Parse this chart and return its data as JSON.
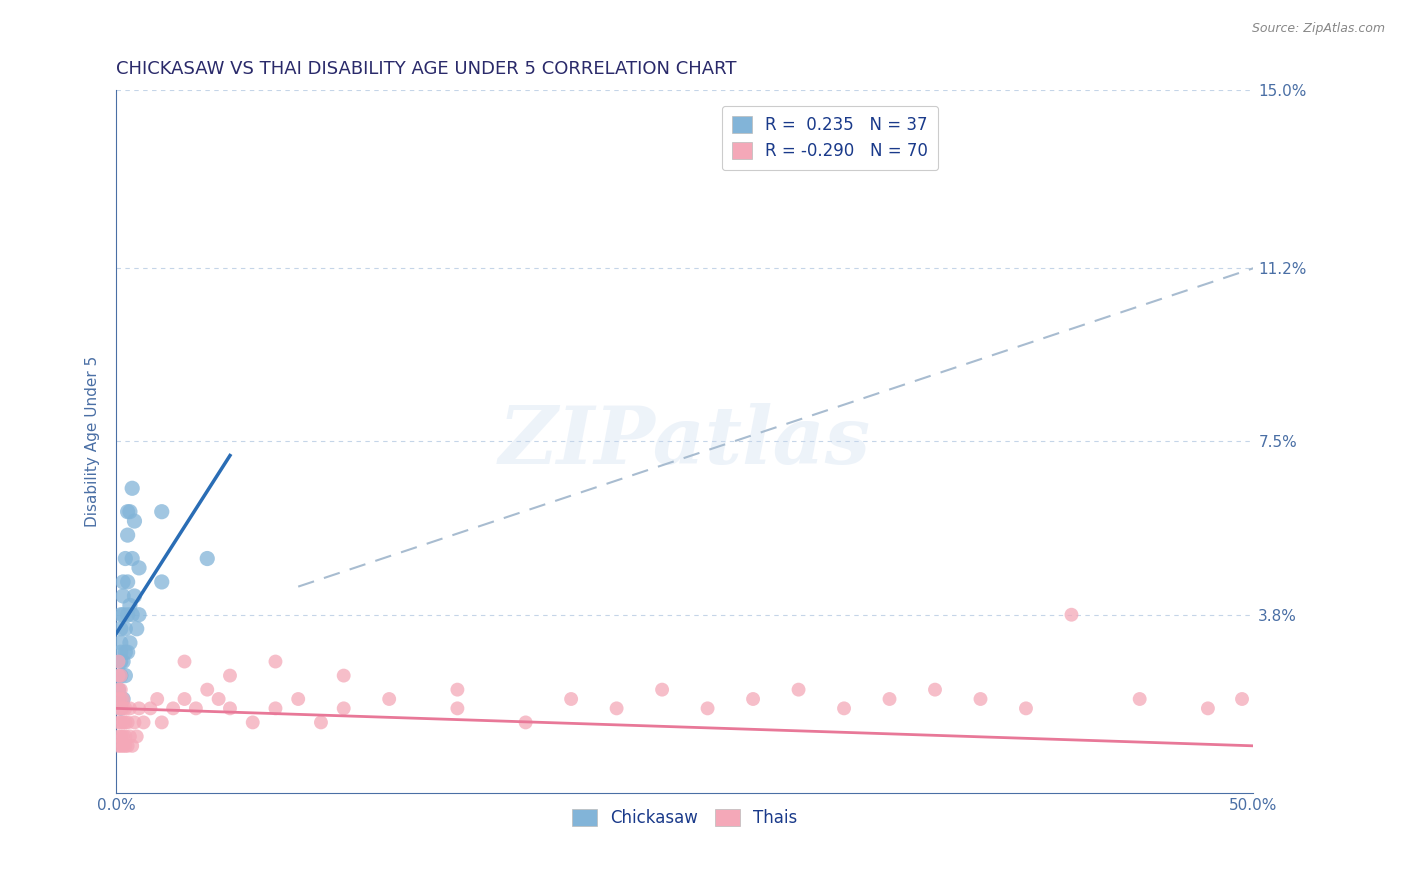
{
  "title": "CHICKASAW VS THAI DISABILITY AGE UNDER 5 CORRELATION CHART",
  "source": "Source: ZipAtlas.com",
  "ylabel": "Disability Age Under 5",
  "xlim": [
    0.0,
    0.5
  ],
  "ylim": [
    0.0,
    0.15
  ],
  "yticks": [
    0.0,
    0.038,
    0.075,
    0.112,
    0.15
  ],
  "ytick_labels": [
    "",
    "3.8%",
    "7.5%",
    "11.2%",
    "15.0%"
  ],
  "xticks": [
    0.0,
    0.1,
    0.2,
    0.3,
    0.4,
    0.5
  ],
  "xtick_labels": [
    "0.0%",
    "",
    "",
    "",
    "",
    "50.0%"
  ],
  "title_color": "#2a2a6a",
  "axis_color": "#4a6fa5",
  "grid_color": "#c5d5e8",
  "watermark_text": "ZIPatlas",
  "legend_line1": "R =  0.235   N = 37",
  "legend_line2": "R = -0.290   N = 70",
  "chickasaw_color": "#82b4d8",
  "thai_color": "#f4a8b8",
  "trendline_blue_color": "#2a6db5",
  "trendline_pink_color": "#e87898",
  "trendline_dashed_color": "#a8bcd0",
  "chickasaw_points": [
    [
      0.001,
      0.02
    ],
    [
      0.001,
      0.022
    ],
    [
      0.002,
      0.018
    ],
    [
      0.002,
      0.025
    ],
    [
      0.002,
      0.028
    ],
    [
      0.002,
      0.03
    ],
    [
      0.002,
      0.032
    ],
    [
      0.002,
      0.035
    ],
    [
      0.002,
      0.038
    ],
    [
      0.003,
      0.02
    ],
    [
      0.003,
      0.028
    ],
    [
      0.003,
      0.038
    ],
    [
      0.003,
      0.042
    ],
    [
      0.003,
      0.045
    ],
    [
      0.004,
      0.025
    ],
    [
      0.004,
      0.03
    ],
    [
      0.004,
      0.035
    ],
    [
      0.004,
      0.05
    ],
    [
      0.005,
      0.03
    ],
    [
      0.005,
      0.038
    ],
    [
      0.005,
      0.045
    ],
    [
      0.005,
      0.055
    ],
    [
      0.005,
      0.06
    ],
    [
      0.006,
      0.032
    ],
    [
      0.006,
      0.04
    ],
    [
      0.006,
      0.06
    ],
    [
      0.007,
      0.038
    ],
    [
      0.007,
      0.05
    ],
    [
      0.007,
      0.065
    ],
    [
      0.008,
      0.042
    ],
    [
      0.008,
      0.058
    ],
    [
      0.009,
      0.035
    ],
    [
      0.01,
      0.038
    ],
    [
      0.01,
      0.048
    ],
    [
      0.02,
      0.045
    ],
    [
      0.02,
      0.06
    ],
    [
      0.04,
      0.05
    ]
  ],
  "thai_points": [
    [
      0.001,
      0.01
    ],
    [
      0.001,
      0.012
    ],
    [
      0.001,
      0.015
    ],
    [
      0.001,
      0.018
    ],
    [
      0.001,
      0.02
    ],
    [
      0.001,
      0.022
    ],
    [
      0.001,
      0.025
    ],
    [
      0.001,
      0.028
    ],
    [
      0.002,
      0.01
    ],
    [
      0.002,
      0.012
    ],
    [
      0.002,
      0.015
    ],
    [
      0.002,
      0.018
    ],
    [
      0.002,
      0.02
    ],
    [
      0.002,
      0.022
    ],
    [
      0.002,
      0.025
    ],
    [
      0.003,
      0.01
    ],
    [
      0.003,
      0.012
    ],
    [
      0.003,
      0.015
    ],
    [
      0.003,
      0.018
    ],
    [
      0.003,
      0.02
    ],
    [
      0.004,
      0.01
    ],
    [
      0.004,
      0.012
    ],
    [
      0.004,
      0.015
    ],
    [
      0.004,
      0.018
    ],
    [
      0.005,
      0.01
    ],
    [
      0.005,
      0.015
    ],
    [
      0.006,
      0.012
    ],
    [
      0.006,
      0.018
    ],
    [
      0.007,
      0.01
    ],
    [
      0.008,
      0.015
    ],
    [
      0.009,
      0.012
    ],
    [
      0.01,
      0.018
    ],
    [
      0.012,
      0.015
    ],
    [
      0.015,
      0.018
    ],
    [
      0.018,
      0.02
    ],
    [
      0.02,
      0.015
    ],
    [
      0.025,
      0.018
    ],
    [
      0.03,
      0.02
    ],
    [
      0.035,
      0.018
    ],
    [
      0.04,
      0.022
    ],
    [
      0.045,
      0.02
    ],
    [
      0.05,
      0.018
    ],
    [
      0.06,
      0.015
    ],
    [
      0.07,
      0.018
    ],
    [
      0.08,
      0.02
    ],
    [
      0.09,
      0.015
    ],
    [
      0.1,
      0.018
    ],
    [
      0.12,
      0.02
    ],
    [
      0.15,
      0.018
    ],
    [
      0.18,
      0.015
    ],
    [
      0.2,
      0.02
    ],
    [
      0.22,
      0.018
    ],
    [
      0.24,
      0.022
    ],
    [
      0.26,
      0.018
    ],
    [
      0.28,
      0.02
    ],
    [
      0.3,
      0.022
    ],
    [
      0.32,
      0.018
    ],
    [
      0.34,
      0.02
    ],
    [
      0.36,
      0.022
    ],
    [
      0.38,
      0.02
    ],
    [
      0.4,
      0.018
    ],
    [
      0.42,
      0.038
    ],
    [
      0.45,
      0.02
    ],
    [
      0.48,
      0.018
    ],
    [
      0.495,
      0.02
    ],
    [
      0.03,
      0.028
    ],
    [
      0.05,
      0.025
    ],
    [
      0.07,
      0.028
    ],
    [
      0.1,
      0.025
    ],
    [
      0.15,
      0.022
    ]
  ],
  "blue_trend_x": [
    0.0,
    0.05
  ],
  "blue_trend_y": [
    0.034,
    0.072
  ],
  "pink_trend_x": [
    0.0,
    0.5
  ],
  "pink_trend_y": [
    0.018,
    0.01
  ],
  "dash_trend_x": [
    0.08,
    0.5
  ],
  "dash_trend_y": [
    0.044,
    0.112
  ]
}
